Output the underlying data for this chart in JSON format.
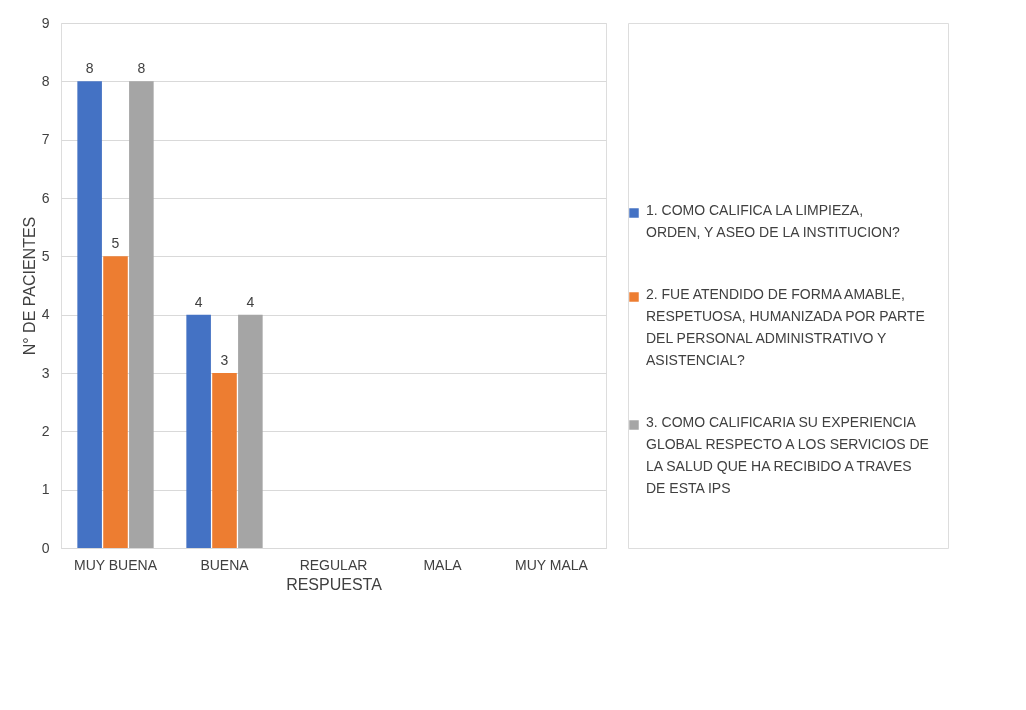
{
  "chart_data": {
    "type": "bar",
    "xlabel": "RESPUESTA",
    "ylabel": "N° DE PACIENTES",
    "categories": [
      "MUY BUENA",
      "BUENA",
      "REGULAR",
      "MALA",
      "MUY MALA"
    ],
    "ylim": [
      0,
      9
    ],
    "yticks": [
      0,
      1,
      2,
      3,
      4,
      5,
      6,
      7,
      8,
      9
    ],
    "grid": "y",
    "legend": "right",
    "series": [
      {
        "name": "1. COMO CALIFICA LA LIMPIEZA, ORDEN, Y ASEO DE LA INSTITUCION?",
        "color": "#4472c4",
        "values": [
          8,
          4,
          0,
          0,
          0
        ],
        "value_labels": [
          "8",
          "4",
          null,
          null,
          null
        ]
      },
      {
        "name": "2. FUE ATENDIDO DE FORMA AMABLE, RESPETUOSA, HUMANIZADA POR PARTE DEL PERSONAL ADMINISTRATIVO Y ASISTENCIAL?",
        "color": "#ed7d31",
        "values": [
          5,
          3,
          0,
          0,
          0
        ],
        "value_labels": [
          "5",
          "3",
          null,
          null,
          null
        ]
      },
      {
        "name": "3. COMO CALIFICARIA SU EXPERIENCIA GLOBAL RESPECTO A LOS SERVICIOS DE LA SALUD QUE HA RECIBIDO A TRAVES DE ESTA IPS",
        "color": "#a5a5a5",
        "values": [
          8,
          4,
          0,
          0,
          0
        ],
        "value_labels": [
          "8",
          "4",
          null,
          null,
          null
        ]
      }
    ]
  }
}
